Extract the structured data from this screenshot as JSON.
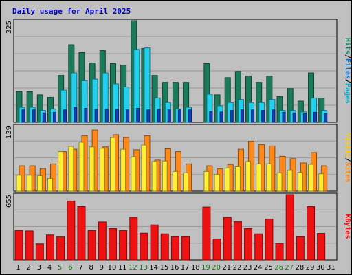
{
  "title": "Daily usage for April 2025",
  "days": [
    "1",
    "2",
    "3",
    "4",
    "5",
    "6",
    "7",
    "8",
    "9",
    "10",
    "11",
    "12",
    "13",
    "14",
    "15",
    "16",
    "17",
    "18",
    "19",
    "20",
    "21",
    "22",
    "23",
    "24",
    "25",
    "26",
    "27",
    "28",
    "29",
    "30",
    "31"
  ],
  "weekend_days": [
    "5",
    "6",
    "12",
    "13",
    "19",
    "20",
    "26",
    "27"
  ],
  "colors": {
    "title": "#0000cc",
    "background": "#c0c0c0",
    "plot_bg": "#c0c0c0",
    "weekday_label": "#000000",
    "weekend_label": "#008000",
    "hits": "#1a7a5a",
    "files": "#22d0ee",
    "pages": "#1040c0",
    "visits": "#ff8818",
    "sites": "#ffee33",
    "kbytes": "#ee1111",
    "label_hits": "#008060",
    "label_files": "#0066cc",
    "label_pages": "#00b0d0",
    "label_visits": "#ffcc00",
    "label_sites": "#ff8800",
    "label_kbytes": "#ee0000"
  },
  "chart_data": [
    {
      "type": "bar",
      "panel": "hits-files-pages",
      "ymax_label": "325",
      "ylim": [
        0,
        325
      ],
      "legend": [
        "Pages",
        "Files",
        "Hits"
      ],
      "series": [
        {
          "name": "Hits",
          "values": [
            98,
            98,
            88,
            80,
            150,
            248,
            223,
            190,
            230,
            188,
            183,
            325,
            236,
            150,
            128,
            128,
            128,
            0,
            188,
            88,
            143,
            163,
            148,
            128,
            148,
            83,
            108,
            68,
            158,
            78,
            0
          ]
        },
        {
          "name": "Files",
          "values": [
            48,
            48,
            38,
            43,
            103,
            158,
            133,
            138,
            158,
            123,
            113,
            233,
            238,
            78,
            63,
            43,
            48,
            0,
            90,
            53,
            63,
            73,
            63,
            63,
            73,
            38,
            38,
            33,
            78,
            38,
            0
          ]
        },
        {
          "name": "Pages",
          "values": [
            40,
            40,
            30,
            32,
            40,
            48,
            45,
            42,
            42,
            42,
            40,
            45,
            40,
            42,
            40,
            40,
            40,
            0,
            35,
            33,
            38,
            40,
            40,
            38,
            40,
            32,
            30,
            28,
            32,
            28,
            0
          ]
        }
      ]
    },
    {
      "type": "bar",
      "panel": "visits-sites",
      "ymax_label": "139",
      "ylim": [
        0,
        139
      ],
      "legend": [
        "Sites",
        "Visits"
      ],
      "series": [
        {
          "name": "Visits",
          "values": [
            54,
            54,
            48,
            58,
            84,
            89,
            118,
            130,
            94,
            120,
            114,
            88,
            118,
            66,
            90,
            84,
            58,
            0,
            54,
            48,
            57,
            89,
            106,
            99,
            96,
            74,
            69,
            60,
            82,
            54,
            0
          ]
        },
        {
          "name": "Sites",
          "values": [
            34,
            34,
            33,
            27,
            84,
            95,
            104,
            94,
            91,
            114,
            89,
            73,
            98,
            63,
            64,
            42,
            39,
            0,
            42,
            36,
            49,
            52,
            63,
            58,
            58,
            39,
            44,
            40,
            57,
            37,
            0
          ]
        }
      ]
    },
    {
      "type": "bar",
      "panel": "kbytes",
      "ymax_label": "655",
      "ylim": [
        0,
        655
      ],
      "legend": [
        "KBytes"
      ],
      "series": [
        {
          "name": "KBytes",
          "values": [
            295,
            290,
            160,
            250,
            230,
            590,
            535,
            295,
            380,
            315,
            295,
            427,
            267,
            350,
            260,
            232,
            232,
            0,
            530,
            210,
            427,
            382,
            315,
            260,
            410,
            165,
            655,
            232,
            535,
            265,
            0
          ]
        }
      ]
    }
  ]
}
